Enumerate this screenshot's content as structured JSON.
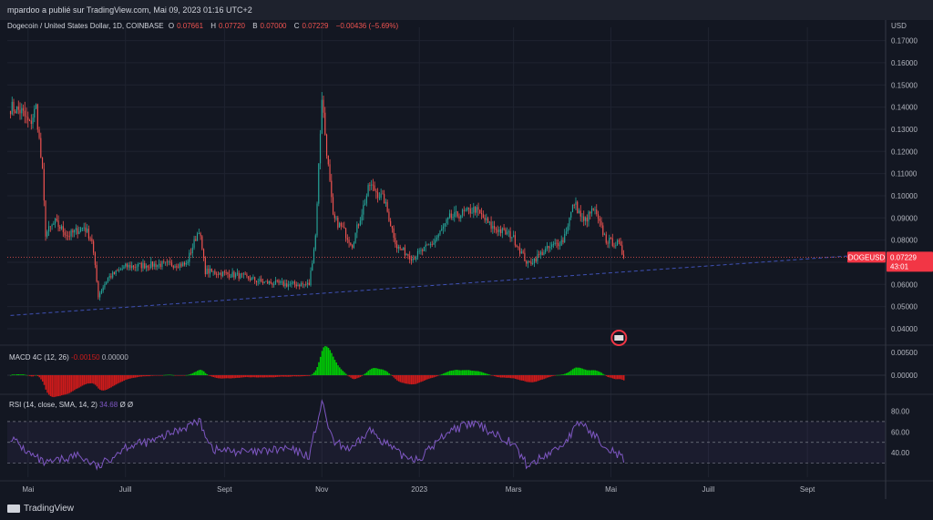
{
  "header": {
    "published_by": "mpardoo a publié sur TradingView.com, Mai 09, 2023 01:16 UTC+2",
    "currency": "USD"
  },
  "symbol_line": {
    "name": "Dogecoin / United States Dollar, 1D, COINBASE",
    "o_label": "O",
    "o_value": "0.07661",
    "h_label": "H",
    "h_value": "0.07720",
    "b_label": "B",
    "b_value": "0.07000",
    "c_label": "C",
    "c_value": "0.07229",
    "change": "−0.00436 (−5.69%)"
  },
  "price_badge": {
    "symbol": "DOGEUSD",
    "price": "0.07229",
    "countdown": "43:01"
  },
  "macd": {
    "label": "MACD 4C (12, 26)",
    "value1": "-0.00150",
    "value2": "0.00000"
  },
  "rsi": {
    "label": "RSI (14, close, SMA, 14, 2)",
    "value": "34.68",
    "extra1": "Ø",
    "extra2": "Ø"
  },
  "footer": {
    "brand": "TradingView"
  },
  "colors": {
    "background": "#131722",
    "up": "#26a69a",
    "down": "#ef5350",
    "macd_up": "#00c805",
    "macd_down": "#cf1b1b",
    "rsi_line": "#7e57c2",
    "badge": "#f23645"
  },
  "chart_data": [
    {
      "type": "candlestick",
      "title": "Dogecoin / United States Dollar, 1D, COINBASE",
      "y_axis": {
        "ylim": [
          0.033,
          0.176
        ],
        "ticks": [
          "0.04000",
          "0.05000",
          "0.06000",
          "0.07000",
          "0.08000",
          "0.09000",
          "0.10000",
          "0.11000",
          "0.12000",
          "0.13000",
          "0.14000",
          "0.15000",
          "0.16000",
          "0.17000"
        ]
      },
      "x_axis": {
        "ticks": [
          "Mai",
          "Juill",
          "Sept",
          "Nov",
          "2023",
          "Mars",
          "Mai",
          "Juill",
          "Sept"
        ]
      },
      "close_path": [
        [
          "2022-04-20",
          0.14
        ],
        [
          "2022-04-27",
          0.138
        ],
        [
          "2022-05-02",
          0.132
        ],
        [
          "2022-05-06",
          0.14
        ],
        [
          "2022-05-10",
          0.11
        ],
        [
          "2022-05-12",
          0.083
        ],
        [
          "2022-05-18",
          0.088
        ],
        [
          "2022-05-26",
          0.082
        ],
        [
          "2022-06-05",
          0.086
        ],
        [
          "2022-06-10",
          0.08
        ],
        [
          "2022-06-14",
          0.055
        ],
        [
          "2022-06-20",
          0.063
        ],
        [
          "2022-07-01",
          0.068
        ],
        [
          "2022-07-20",
          0.069
        ],
        [
          "2022-08-08",
          0.069
        ],
        [
          "2022-08-16",
          0.085
        ],
        [
          "2022-08-20",
          0.066
        ],
        [
          "2022-09-10",
          0.064
        ],
        [
          "2022-09-25",
          0.061
        ],
        [
          "2022-10-10",
          0.06
        ],
        [
          "2022-10-24",
          0.06
        ],
        [
          "2022-10-28",
          0.082
        ],
        [
          "2022-11-01",
          0.145
        ],
        [
          "2022-11-03",
          0.128
        ],
        [
          "2022-11-08",
          0.09
        ],
        [
          "2022-11-14",
          0.085
        ],
        [
          "2022-11-20",
          0.078
        ],
        [
          "2022-12-01",
          0.105
        ],
        [
          "2022-12-10",
          0.098
        ],
        [
          "2022-12-18",
          0.077
        ],
        [
          "2022-12-28",
          0.072
        ],
        [
          "2023-01-10",
          0.079
        ],
        [
          "2023-01-20",
          0.09
        ],
        [
          "2023-01-28",
          0.092
        ],
        [
          "2023-02-05",
          0.094
        ],
        [
          "2023-02-15",
          0.086
        ],
        [
          "2023-02-28",
          0.082
        ],
        [
          "2023-03-10",
          0.069
        ],
        [
          "2023-03-20",
          0.075
        ],
        [
          "2023-04-01",
          0.08
        ],
        [
          "2023-04-08",
          0.097
        ],
        [
          "2023-04-14",
          0.088
        ],
        [
          "2023-04-20",
          0.094
        ],
        [
          "2023-04-28",
          0.08
        ],
        [
          "2023-05-06",
          0.078
        ],
        [
          "2023-05-09",
          0.07229
        ]
      ],
      "trendlines": {
        "support": {
          "from": [
            "2022-04-20",
            0.046
          ],
          "to": [
            "2023-09-30",
            0.073
          ]
        },
        "last_price": 0.07229
      }
    },
    {
      "type": "bar",
      "title": "MACD 4C (12, 26)",
      "y_axis": {
        "ticks": [
          "0.00000",
          "0.00500"
        ]
      },
      "series_note": "histogram"
    },
    {
      "type": "line",
      "title": "RSI (14, close, SMA, 14, 2)",
      "y_axis": {
        "ticks": [
          "40.00",
          "60.00",
          "80.00"
        ],
        "bands": [
          70,
          50,
          30
        ]
      },
      "path": [
        [
          "2022-04-20",
          55
        ],
        [
          "2022-05-01",
          40
        ],
        [
          "2022-05-12",
          29
        ],
        [
          "2022-06-01",
          38
        ],
        [
          "2022-06-14",
          26
        ],
        [
          "2022-07-01",
          46
        ],
        [
          "2022-07-20",
          52
        ],
        [
          "2022-08-16",
          71
        ],
        [
          "2022-08-25",
          43
        ],
        [
          "2022-09-20",
          40
        ],
        [
          "2022-10-10",
          44
        ],
        [
          "2022-10-24",
          37
        ],
        [
          "2022-11-01",
          88
        ],
        [
          "2022-11-08",
          50
        ],
        [
          "2022-11-20",
          43
        ],
        [
          "2022-12-01",
          62
        ],
        [
          "2022-12-20",
          38
        ],
        [
          "2023-01-01",
          34
        ],
        [
          "2023-01-20",
          62
        ],
        [
          "2023-02-05",
          68
        ],
        [
          "2023-02-28",
          50
        ],
        [
          "2023-03-10",
          27
        ],
        [
          "2023-04-01",
          48
        ],
        [
          "2023-04-12",
          70
        ],
        [
          "2023-04-20",
          57
        ],
        [
          "2023-04-28",
          47
        ],
        [
          "2023-05-09",
          34
        ]
      ]
    }
  ]
}
